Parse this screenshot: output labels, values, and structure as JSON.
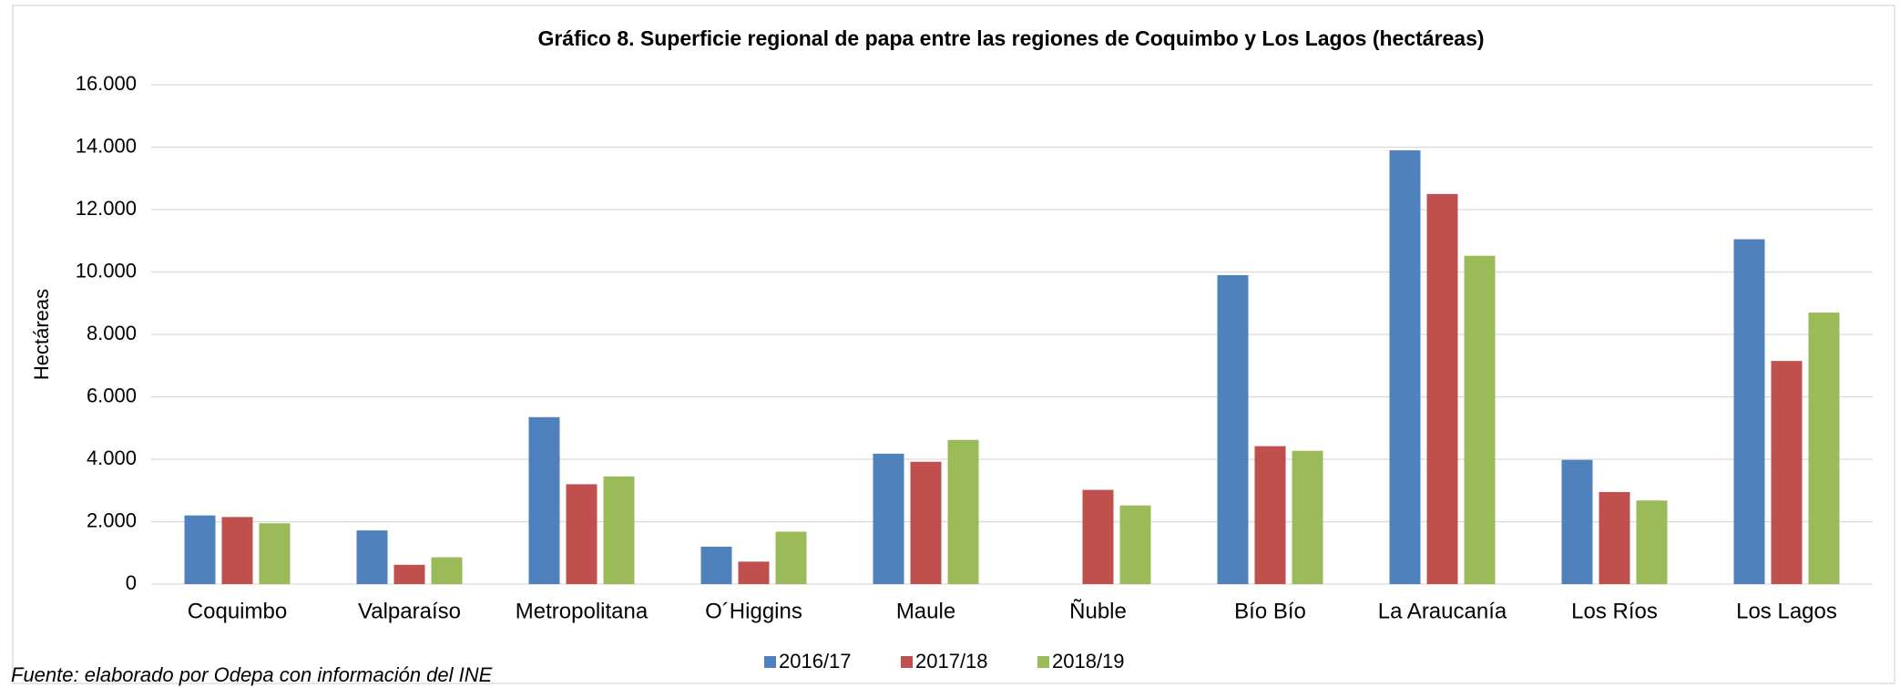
{
  "chart_data": {
    "type": "bar",
    "title": "Gráfico 8. Superficie regional de papa entre las regiones de Coquimbo y Los Lagos (hectáreas)",
    "y_label": "Hectáreas",
    "source": "Fuente: elaborado por Odepa con información del INE",
    "categories": [
      "Coquimbo",
      "Valparaíso",
      "Metropolitana",
      "O´Higgins",
      "Maule",
      "Ñuble",
      "Bío Bío",
      "La Araucanía",
      "Los Ríos",
      "Los Lagos"
    ],
    "series": [
      {
        "name": "2016/17",
        "color": "#4f81bd",
        "values": [
          2200,
          1720,
          5350,
          1200,
          4180,
          null,
          9900,
          13900,
          3980,
          11050
        ]
      },
      {
        "name": "2017/18",
        "color": "#c0504d",
        "values": [
          2150,
          620,
          3200,
          720,
          3920,
          3020,
          4420,
          12500,
          2950,
          7150
        ]
      },
      {
        "name": "2018/19",
        "color": "#9bbb59",
        "values": [
          1950,
          860,
          3450,
          1680,
          4620,
          2520,
          4270,
          10520,
          2680,
          8700
        ]
      }
    ],
    "ylim": [
      0,
      16000
    ],
    "yticks": [
      0,
      {
        "value": 2000,
        "label": "2.000"
      },
      {
        "value": 4000,
        "label": "4.000"
      },
      {
        "value": 6000,
        "label": "6.000"
      },
      {
        "value": 8000,
        "label": "8.000"
      },
      {
        "value": 10000,
        "label": "10.000"
      },
      {
        "value": 12000,
        "label": "12.000"
      },
      {
        "value": 14000,
        "label": "14.000"
      },
      {
        "value": 16000,
        "label": "16.000"
      }
    ],
    "grid": true,
    "legend": "bottom"
  }
}
